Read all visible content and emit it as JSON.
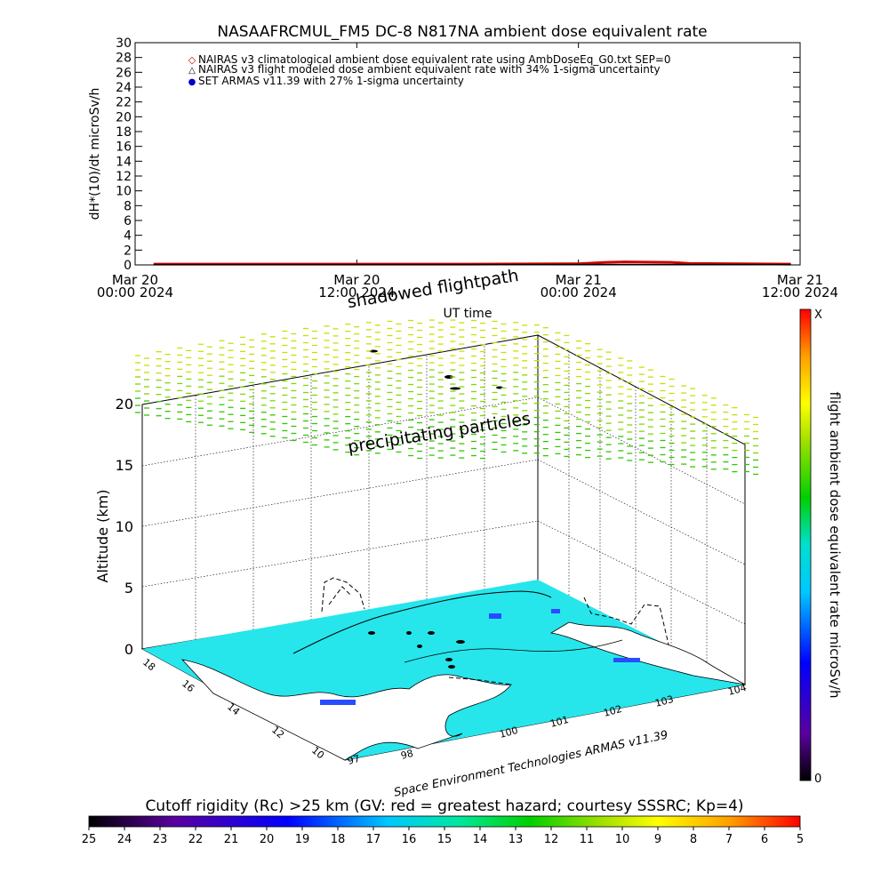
{
  "top_chart": {
    "title": "NASAAFRCMUL_FM5 DC-8   N817NA ambient dose equivalent rate",
    "ylabel": "dH*(10)/dt microSv/h",
    "xlabel": "UT time",
    "legend": [
      {
        "symbol": "◇",
        "color": "#cc0000",
        "text": "NAIRAS v3 climatological ambient dose equivalent rate using AmbDoseEq_G0.txt SEP=0"
      },
      {
        "symbol": "△",
        "color": "#000000",
        "text": "NAIRAS v3 flight modeled dose ambient equivalent rate with 34% 1-sigma uncertainty"
      },
      {
        "symbol": "●",
        "color": "#0000cc",
        "text": "SET ARMAS v11.39 with 27% 1-sigma uncertainty"
      }
    ],
    "x_ticks": [
      {
        "line1": "Mar 20",
        "line2": "00:00 2024"
      },
      {
        "line1": "Mar 20",
        "line2": "12:00 2024"
      },
      {
        "line1": "Mar 21",
        "line2": "00:00 2024"
      },
      {
        "line1": "Mar 21",
        "line2": "12:00 2024"
      }
    ]
  },
  "chart_data": [
    {
      "type": "line",
      "title": "NASAAFRCMUL_FM5 DC-8   N817NA ambient dose equivalent rate",
      "xlabel": "UT time",
      "ylabel": "dH*(10)/dt microSv/h",
      "ylim": [
        0,
        30
      ],
      "y_ticks": [
        0,
        2,
        4,
        6,
        8,
        10,
        12,
        14,
        16,
        18,
        20,
        22,
        24,
        26,
        28,
        30
      ],
      "x_tick_labels": [
        "Mar 20 00:00 2024",
        "Mar 20 12:00 2024",
        "Mar 21 00:00 2024",
        "Mar 21 12:00 2024"
      ],
      "x_hours": [
        0,
        12,
        24,
        36
      ],
      "series": [
        {
          "name": "NAIRAS v3 climatological ambient dose equivalent rate using AmbDoseEq_G0.txt SEP=0",
          "color": "#cc0000",
          "x": [
            1,
            6,
            12,
            18,
            24,
            25.5,
            26.5,
            29,
            30,
            35.5
          ],
          "y": [
            0.1,
            0.1,
            0.1,
            0.1,
            0.15,
            0.35,
            0.4,
            0.35,
            0.2,
            0.1
          ]
        },
        {
          "name": "NAIRAS v3 flight modeled dose ambient equivalent rate with 34% 1-sigma uncertainty",
          "color": "#000000",
          "x": [
            1,
            12,
            24,
            35.5
          ],
          "y": [
            0.05,
            0.05,
            0.05,
            0.05
          ]
        }
      ],
      "grid": false
    },
    {
      "type": "scatter",
      "title": "shadowed flightpath",
      "annotations": [
        "precipitating particles"
      ],
      "zlabel": "Altitude (km)",
      "z_ticks": [
        0,
        5,
        10,
        15,
        20
      ],
      "lat_ticks": [
        10,
        12,
        14,
        16,
        18
      ],
      "lon_ticks": [
        97,
        98,
        100,
        101,
        102,
        103,
        104
      ],
      "colorbar": {
        "label": "flight ambient dose equivalent rate microSv/h",
        "top": "X",
        "bottom": "0"
      }
    }
  ],
  "map_chart": {
    "title": "shadowed flightpath",
    "annotation": "precipitating particles",
    "zlabel": "Altitude (km)",
    "z_ticks": [
      "0",
      "5",
      "10",
      "15",
      "20"
    ],
    "lat_ticks": [
      "10",
      "12",
      "14",
      "16",
      "18"
    ],
    "lon_ticks": [
      "97",
      "98",
      "100",
      "101",
      "102",
      "103",
      "104"
    ],
    "credit": "Space Environment Technologies ARMAS v11.39",
    "colorbar_label": "flight ambient dose equivalent rate microSv/h",
    "colorbar_top": "X",
    "colorbar_bottom": "0"
  },
  "cutoff_bar": {
    "title": "Cutoff rigidity (Rc) >25 km (GV: red = greatest hazard; courtesy SSSRC; Kp=4)",
    "ticks": [
      "25",
      "24",
      "23",
      "22",
      "21",
      "20",
      "19",
      "18",
      "17",
      "16",
      "15",
      "14",
      "13",
      "12",
      "11",
      "10",
      "9",
      "8",
      "7",
      "6",
      "5"
    ]
  },
  "colors": {
    "sea": "#26e6ec",
    "land": "#ffffff",
    "spectrum": [
      "#000000",
      "#5a00a0",
      "#0000ff",
      "#00c8ff",
      "#00e8a0",
      "#00d000",
      "#a0e000",
      "#ffff00",
      "#ffa000",
      "#ff0000"
    ]
  }
}
